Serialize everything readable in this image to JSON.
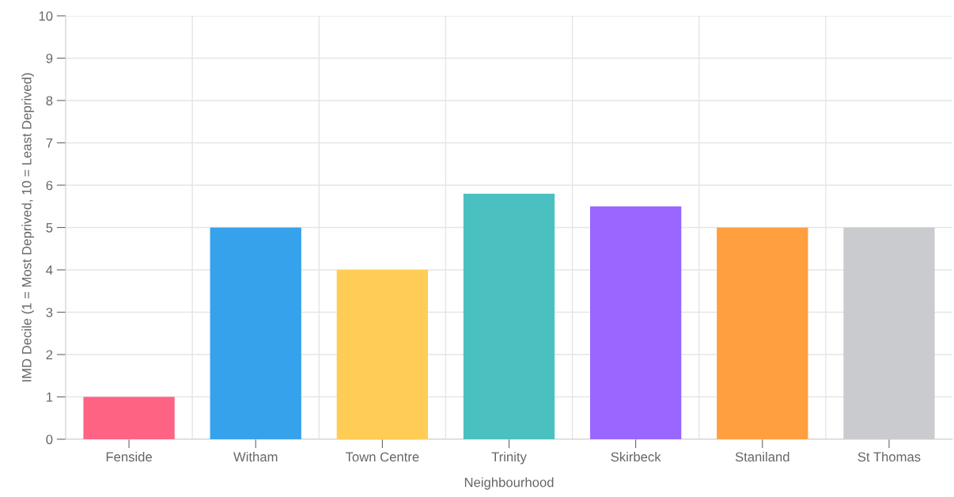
{
  "chart_data": {
    "type": "bar",
    "xlabel": "Neighbourhood",
    "ylabel": "IMD Decile (1 = Most Deprived, 10 = Least Deprived)",
    "categories": [
      "Fenside",
      "Witham",
      "Town Centre",
      "Trinity",
      "Skirbeck",
      "Staniland",
      "St Thomas"
    ],
    "values": [
      1,
      5,
      4,
      5.8,
      5.5,
      5,
      5
    ],
    "colors": [
      "#ff6384",
      "#36a2eb",
      "#ffcd56",
      "#4bc0c0",
      "#9966ff",
      "#ff9f40",
      "#c9cbcf"
    ],
    "ylim": [
      0,
      10
    ],
    "yticks": [
      0,
      1,
      2,
      3,
      4,
      5,
      6,
      7,
      8,
      9,
      10
    ],
    "grid": true,
    "legend": false
  }
}
